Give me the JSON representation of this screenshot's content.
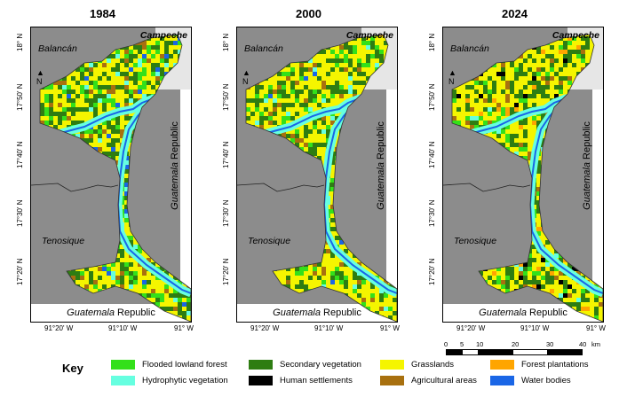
{
  "panels": [
    {
      "year": "1984"
    },
    {
      "year": "2000"
    },
    {
      "year": "2024"
    }
  ],
  "map_labels": {
    "campeche": "Campeche",
    "balancan": "Balancán",
    "tenosique": "Tenosique",
    "guatemala_italic": "Guatemala",
    "republic": "Republic",
    "north": "N"
  },
  "lat_labels": [
    "18° N",
    "17°50' N",
    "17°40' N",
    "17°30' N",
    "17°20' N"
  ],
  "lon_labels": [
    "91°20' W",
    "91°10' W",
    "91° W"
  ],
  "scale": {
    "ticks": [
      "0",
      "5",
      "10",
      "20",
      "30",
      "40"
    ],
    "unit": "km"
  },
  "key": {
    "title": "Key",
    "items": [
      {
        "label": "Flooded lowland forest",
        "color": "#33e01a"
      },
      {
        "label": "Hydrophytic vegetation",
        "color": "#66ffe0"
      },
      {
        "label": "Secondary vegetation",
        "color": "#2e7d12"
      },
      {
        "label": "Human settlements",
        "color": "#000000"
      },
      {
        "label": "Grasslands",
        "color": "#f5f500"
      },
      {
        "label": "Agricultural areas",
        "color": "#a8700f"
      },
      {
        "label": "Forest plantations",
        "color": "#ffa500"
      },
      {
        "label": "Water bodies",
        "color": "#1a66e6"
      }
    ]
  }
}
